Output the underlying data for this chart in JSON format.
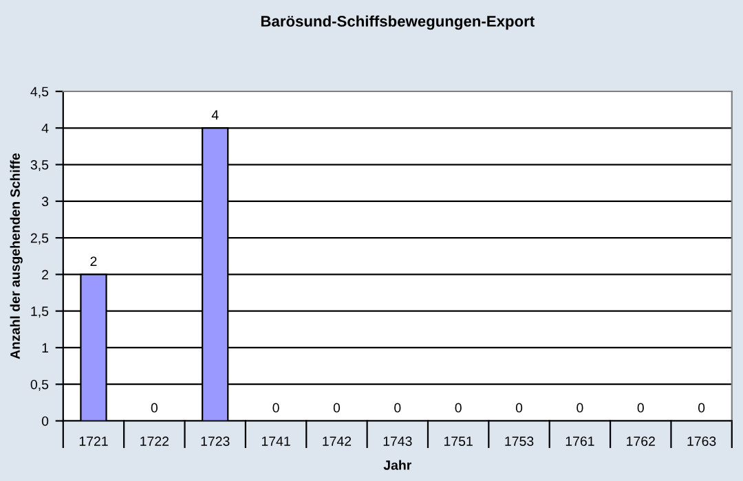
{
  "chart_data": {
    "type": "bar",
    "title": "Barösund-Schiffsbewegungen-Export",
    "xlabel": "Jahr",
    "ylabel": "Anzahl der ausgehenden Schiffe",
    "categories": [
      "1721",
      "1722",
      "1723",
      "1741",
      "1742",
      "1743",
      "1751",
      "1753",
      "1761",
      "1762",
      "1763"
    ],
    "values": [
      2,
      0,
      4,
      0,
      0,
      0,
      0,
      0,
      0,
      0,
      0
    ],
    "color": "#9999ff",
    "ylim": [
      0,
      4.5
    ],
    "yticks": [
      0,
      {
        "value": 0.5,
        "label": "0,5"
      },
      1,
      {
        "value": 1.5,
        "label": "1,5"
      },
      2,
      {
        "value": 2.5,
        "label": "2,5"
      },
      3,
      {
        "value": 3.5,
        "label": "3,5"
      },
      4,
      {
        "value": 4.5,
        "label": "4,5"
      }
    ],
    "grid": "y",
    "data_labels": true,
    "legend": false
  }
}
